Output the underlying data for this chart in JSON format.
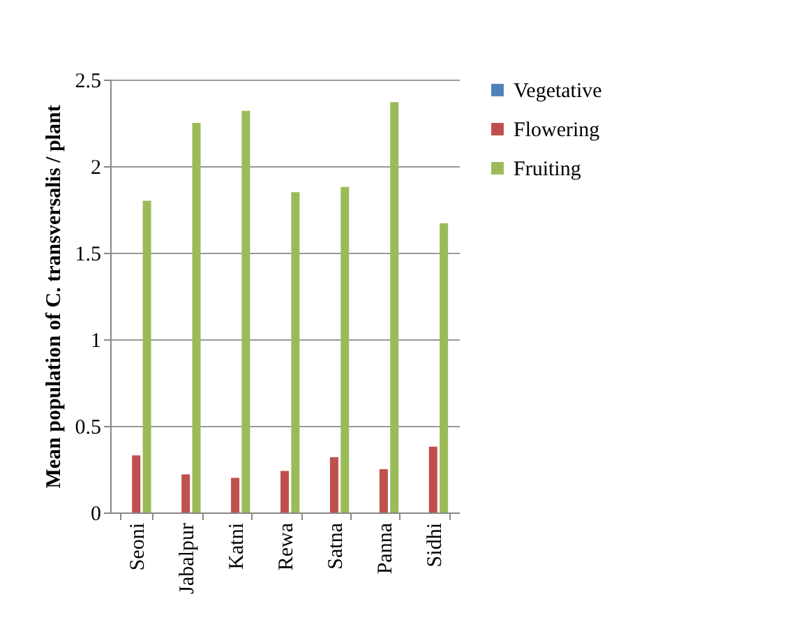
{
  "chart_data": {
    "type": "bar",
    "ylabel": "Mean population of C. transversalis / plant",
    "categories": [
      "Seoni",
      "Jabalpur",
      "Katni",
      "Rewa",
      "Satna",
      "Panna",
      "Sidhi"
    ],
    "series": [
      {
        "name": "Vegetative",
        "color": "#4f81bd",
        "values": [
          0,
          0,
          0,
          0,
          0,
          0,
          0
        ]
      },
      {
        "name": "Flowering",
        "color": "#c0504d",
        "values": [
          0.33,
          0.22,
          0.2,
          0.24,
          0.32,
          0.25,
          0.38
        ]
      },
      {
        "name": "Fruiting",
        "color": "#9bbb59",
        "values": [
          1.8,
          2.25,
          2.32,
          1.85,
          1.88,
          2.37,
          1.67
        ]
      }
    ],
    "ylim": [
      0,
      2.5
    ],
    "yticks": [
      0,
      0.5,
      1,
      1.5,
      2,
      2.5
    ],
    "grid": "y",
    "legend": "right"
  }
}
